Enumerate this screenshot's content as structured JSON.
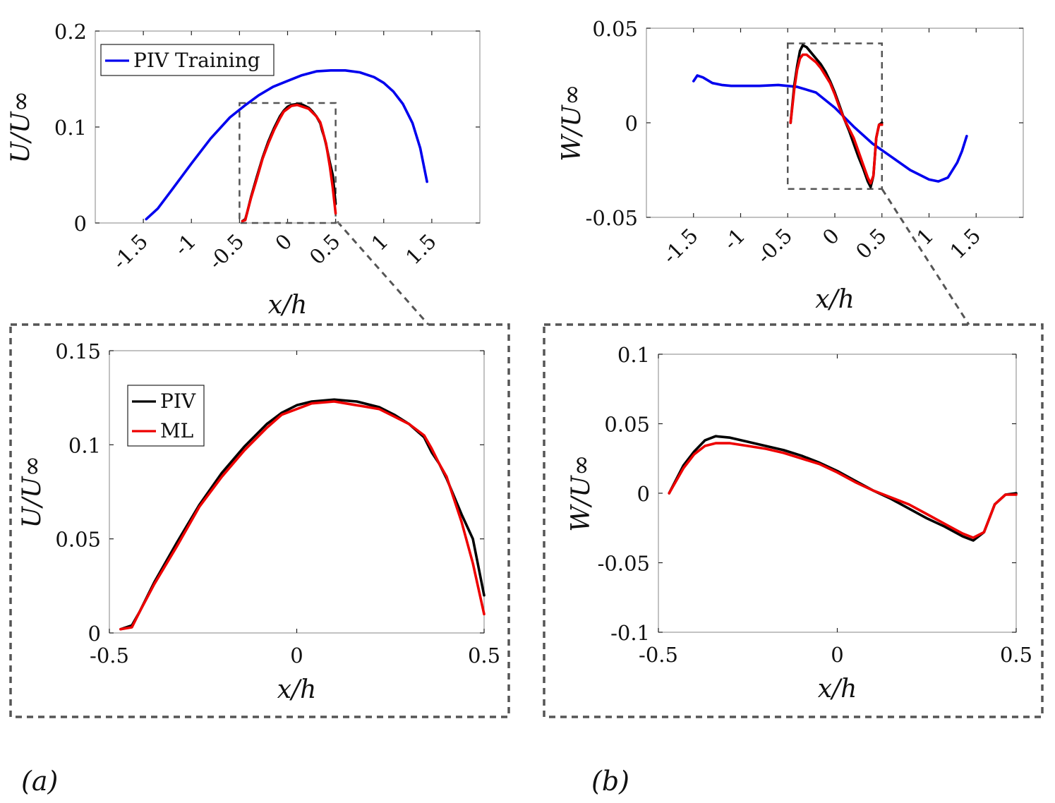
{
  "panel_labels": {
    "a": "(a)",
    "b": "(b)"
  },
  "colors": {
    "training": "#0000ee",
    "piv": "#000000",
    "ml": "#ee0000",
    "zoom": "#555555"
  },
  "chart_data": [
    {
      "id": "a-top",
      "type": "line",
      "title": "",
      "xlabel": "x/h",
      "ylabel": "U/U∞",
      "xlim": [
        -2.0,
        2.0
      ],
      "ylim": [
        0,
        0.2
      ],
      "xticks": [
        -1.5,
        -1,
        -0.5,
        0,
        0.5,
        1,
        1.5
      ],
      "xtick_labels": [
        "-1.5",
        "-1",
        "-0.5",
        "0",
        "0.5",
        "1",
        "1.5"
      ],
      "yticks": [
        0,
        0.1,
        0.2
      ],
      "ytick_labels": [
        "0",
        "0.1",
        "0.2"
      ],
      "legend": {
        "position": "top-left",
        "entries": [
          "PIV Training"
        ]
      },
      "zoom_region": {
        "x": [
          -0.5,
          0.5
        ],
        "y": [
          0,
          0.125
        ]
      },
      "series": [
        {
          "name": "PIV Training",
          "color": "#0000ee",
          "x": [
            -1.47,
            -1.35,
            -1.2,
            -1.0,
            -0.8,
            -0.6,
            -0.45,
            -0.3,
            -0.15,
            0.0,
            0.15,
            0.3,
            0.45,
            0.6,
            0.75,
            0.9,
            1.0,
            1.1,
            1.2,
            1.3,
            1.38,
            1.45
          ],
          "y": [
            0.004,
            0.015,
            0.035,
            0.062,
            0.088,
            0.11,
            0.122,
            0.133,
            0.142,
            0.148,
            0.154,
            0.158,
            0.159,
            0.159,
            0.157,
            0.152,
            0.146,
            0.137,
            0.124,
            0.104,
            0.078,
            0.043
          ]
        },
        {
          "name": "PIV",
          "color": "#000000",
          "x": [
            -0.47,
            -0.44,
            -0.42,
            -0.38,
            -0.32,
            -0.26,
            -0.2,
            -0.14,
            -0.08,
            -0.04,
            0.0,
            0.04,
            0.1,
            0.16,
            0.22,
            0.26,
            0.3,
            0.34,
            0.36,
            0.38,
            0.4,
            0.44,
            0.47,
            0.5
          ],
          "y": [
            0.002,
            0.004,
            0.011,
            0.027,
            0.048,
            0.068,
            0.085,
            0.099,
            0.111,
            0.117,
            0.121,
            0.123,
            0.124,
            0.123,
            0.12,
            0.116,
            0.111,
            0.104,
            0.096,
            0.09,
            0.082,
            0.063,
            0.05,
            0.02
          ]
        },
        {
          "name": "ML",
          "color": "#ee0000",
          "x": [
            -0.47,
            -0.44,
            -0.42,
            -0.38,
            -0.32,
            -0.26,
            -0.2,
            -0.14,
            -0.08,
            -0.04,
            0.0,
            0.04,
            0.1,
            0.16,
            0.22,
            0.26,
            0.3,
            0.34,
            0.36,
            0.38,
            0.4,
            0.44,
            0.47,
            0.5
          ],
          "y": [
            0.002,
            0.003,
            0.011,
            0.026,
            0.046,
            0.067,
            0.083,
            0.097,
            0.109,
            0.116,
            0.119,
            0.122,
            0.123,
            0.121,
            0.119,
            0.115,
            0.111,
            0.105,
            0.098,
            0.09,
            0.083,
            0.059,
            0.037,
            0.01
          ]
        }
      ]
    },
    {
      "id": "b-top",
      "type": "line",
      "title": "",
      "xlabel": "x/h",
      "ylabel": "W/U∞",
      "xlim": [
        -2.0,
        2.0
      ],
      "ylim": [
        -0.05,
        0.05
      ],
      "xticks": [
        -1.5,
        -1,
        -0.5,
        0,
        0.5,
        1,
        1.5
      ],
      "xtick_labels": [
        "-1.5",
        "-1",
        "-0.5",
        "0",
        "0.5",
        "1",
        "1.5"
      ],
      "yticks": [
        -0.05,
        0,
        0.05
      ],
      "ytick_labels": [
        "-0.05",
        "0",
        "0.05"
      ],
      "zoom_region": {
        "x": [
          -0.5,
          0.5
        ],
        "y": [
          -0.035,
          0.042
        ]
      },
      "series": [
        {
          "name": "PIV Training",
          "color": "#0000ee",
          "x": [
            -1.5,
            -1.46,
            -1.4,
            -1.3,
            -1.2,
            -1.1,
            -1.0,
            -0.9,
            -0.8,
            -0.6,
            -0.4,
            -0.2,
            0.0,
            0.2,
            0.4,
            0.6,
            0.8,
            1.0,
            1.1,
            1.2,
            1.3,
            1.35,
            1.4
          ],
          "y": [
            0.022,
            0.025,
            0.024,
            0.021,
            0.02,
            0.0195,
            0.0195,
            0.0195,
            0.0195,
            0.02,
            0.019,
            0.016,
            0.008,
            -0.002,
            -0.011,
            -0.018,
            -0.025,
            -0.03,
            -0.031,
            -0.029,
            -0.021,
            -0.015,
            -0.007
          ]
        },
        {
          "name": "PIV",
          "color": "#000000",
          "x": [
            -0.47,
            -0.43,
            -0.4,
            -0.37,
            -0.34,
            -0.3,
            -0.25,
            -0.2,
            -0.15,
            -0.1,
            -0.05,
            0.0,
            0.05,
            0.1,
            0.15,
            0.2,
            0.25,
            0.3,
            0.35,
            0.38,
            0.41,
            0.44,
            0.47,
            0.5
          ],
          "y": [
            0.0,
            0.02,
            0.03,
            0.038,
            0.041,
            0.04,
            0.037,
            0.034,
            0.031,
            0.027,
            0.022,
            0.016,
            0.009,
            0.002,
            -0.004,
            -0.011,
            -0.018,
            -0.024,
            -0.031,
            -0.034,
            -0.028,
            -0.008,
            -0.001,
            0.0
          ]
        },
        {
          "name": "ML",
          "color": "#ee0000",
          "x": [
            -0.47,
            -0.43,
            -0.4,
            -0.37,
            -0.34,
            -0.3,
            -0.25,
            -0.2,
            -0.15,
            -0.1,
            -0.05,
            0.0,
            0.05,
            0.1,
            0.15,
            0.2,
            0.25,
            0.3,
            0.35,
            0.38,
            0.41,
            0.44,
            0.47,
            0.5
          ],
          "y": [
            0.0,
            0.018,
            0.028,
            0.034,
            0.036,
            0.036,
            0.034,
            0.032,
            0.029,
            0.025,
            0.021,
            0.015,
            0.008,
            0.002,
            -0.003,
            -0.008,
            -0.015,
            -0.022,
            -0.029,
            -0.032,
            -0.028,
            -0.008,
            -0.001,
            -0.001
          ]
        }
      ]
    },
    {
      "id": "a-zoom",
      "type": "line",
      "title": "",
      "xlabel": "x/h",
      "ylabel": "U/U∞",
      "xlim": [
        -0.5,
        0.5
      ],
      "ylim": [
        0,
        0.15
      ],
      "xticks": [
        -0.5,
        0,
        0.5
      ],
      "xtick_labels": [
        "-0.5",
        "0",
        "0.5"
      ],
      "yticks": [
        0,
        0.05,
        0.1,
        0.15
      ],
      "ytick_labels": [
        "0",
        "0.05",
        "0.1",
        "0.15"
      ],
      "legend": {
        "position": "upper-left",
        "entries": [
          "PIV",
          "ML"
        ]
      },
      "series": [
        {
          "name": "PIV",
          "color": "#000000",
          "x": [
            -0.47,
            -0.44,
            -0.42,
            -0.38,
            -0.32,
            -0.26,
            -0.2,
            -0.14,
            -0.08,
            -0.04,
            0.0,
            0.04,
            0.1,
            0.16,
            0.22,
            0.26,
            0.3,
            0.34,
            0.36,
            0.38,
            0.4,
            0.44,
            0.47,
            0.5
          ],
          "y": [
            0.002,
            0.004,
            0.011,
            0.027,
            0.048,
            0.068,
            0.085,
            0.099,
            0.111,
            0.117,
            0.121,
            0.123,
            0.124,
            0.123,
            0.12,
            0.116,
            0.111,
            0.104,
            0.096,
            0.09,
            0.082,
            0.063,
            0.05,
            0.02
          ]
        },
        {
          "name": "ML",
          "color": "#ee0000",
          "x": [
            -0.47,
            -0.44,
            -0.42,
            -0.38,
            -0.32,
            -0.26,
            -0.2,
            -0.14,
            -0.08,
            -0.04,
            0.0,
            0.04,
            0.1,
            0.16,
            0.22,
            0.26,
            0.3,
            0.34,
            0.36,
            0.38,
            0.4,
            0.44,
            0.47,
            0.5
          ],
          "y": [
            0.002,
            0.003,
            0.011,
            0.026,
            0.046,
            0.067,
            0.083,
            0.097,
            0.109,
            0.116,
            0.119,
            0.122,
            0.123,
            0.121,
            0.119,
            0.115,
            0.111,
            0.105,
            0.098,
            0.09,
            0.083,
            0.059,
            0.037,
            0.01
          ]
        }
      ]
    },
    {
      "id": "b-zoom",
      "type": "line",
      "title": "",
      "xlabel": "x/h",
      "ylabel": "W/U∞",
      "xlim": [
        -0.5,
        0.5
      ],
      "ylim": [
        -0.1,
        0.1
      ],
      "xticks": [
        -0.5,
        0,
        0.5
      ],
      "xtick_labels": [
        "-0.5",
        "0",
        "0.5"
      ],
      "yticks": [
        -0.1,
        -0.05,
        0,
        0.05,
        0.1
      ],
      "ytick_labels": [
        "-0.1",
        "-0.05",
        "0",
        "0.05",
        "0.1"
      ],
      "series": [
        {
          "name": "PIV",
          "color": "#000000",
          "x": [
            -0.47,
            -0.43,
            -0.4,
            -0.37,
            -0.34,
            -0.3,
            -0.25,
            -0.2,
            -0.15,
            -0.1,
            -0.05,
            0.0,
            0.05,
            0.1,
            0.15,
            0.2,
            0.25,
            0.3,
            0.35,
            0.38,
            0.41,
            0.44,
            0.47,
            0.5
          ],
          "y": [
            0.0,
            0.02,
            0.03,
            0.038,
            0.041,
            0.04,
            0.037,
            0.034,
            0.031,
            0.027,
            0.022,
            0.016,
            0.009,
            0.002,
            -0.004,
            -0.011,
            -0.018,
            -0.024,
            -0.031,
            -0.034,
            -0.028,
            -0.008,
            -0.001,
            0.0
          ]
        },
        {
          "name": "ML",
          "color": "#ee0000",
          "x": [
            -0.47,
            -0.43,
            -0.4,
            -0.37,
            -0.34,
            -0.3,
            -0.25,
            -0.2,
            -0.15,
            -0.1,
            -0.05,
            0.0,
            0.05,
            0.1,
            0.15,
            0.2,
            0.25,
            0.3,
            0.35,
            0.38,
            0.41,
            0.44,
            0.47,
            0.5
          ],
          "y": [
            0.0,
            0.018,
            0.028,
            0.034,
            0.036,
            0.036,
            0.034,
            0.032,
            0.029,
            0.025,
            0.021,
            0.015,
            0.008,
            0.002,
            -0.003,
            -0.008,
            -0.015,
            -0.022,
            -0.029,
            -0.032,
            -0.028,
            -0.008,
            -0.001,
            -0.001
          ]
        }
      ]
    }
  ]
}
